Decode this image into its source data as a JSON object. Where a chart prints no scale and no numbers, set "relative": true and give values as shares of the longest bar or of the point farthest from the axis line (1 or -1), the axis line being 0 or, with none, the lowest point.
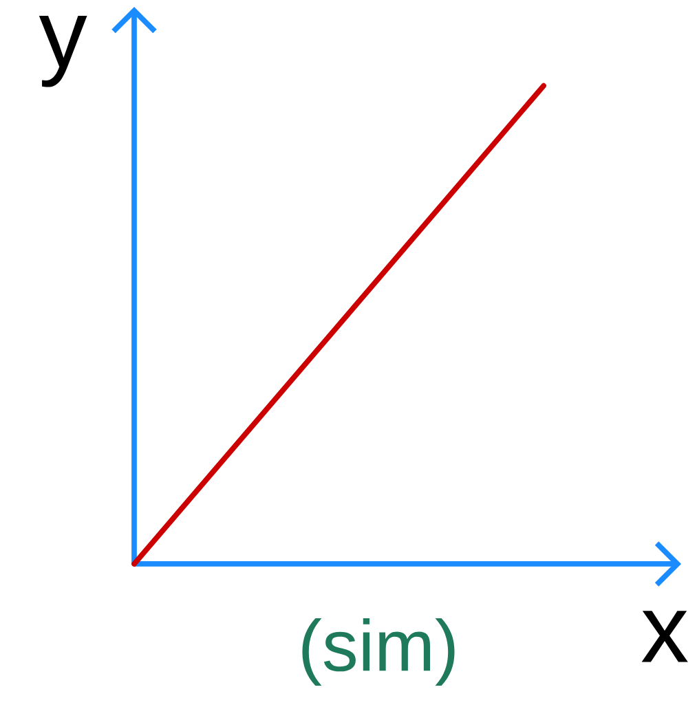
{
  "chart_data": {
    "type": "line",
    "relative": true,
    "xlabel": "x",
    "ylabel": "y",
    "categories": [
      null,
      null
    ],
    "series": [
      {
        "color": "#cc0000",
        "values": [
          0,
          1
        ]
      }
    ],
    "annotations": [
      "(sim)"
    ]
  }
}
